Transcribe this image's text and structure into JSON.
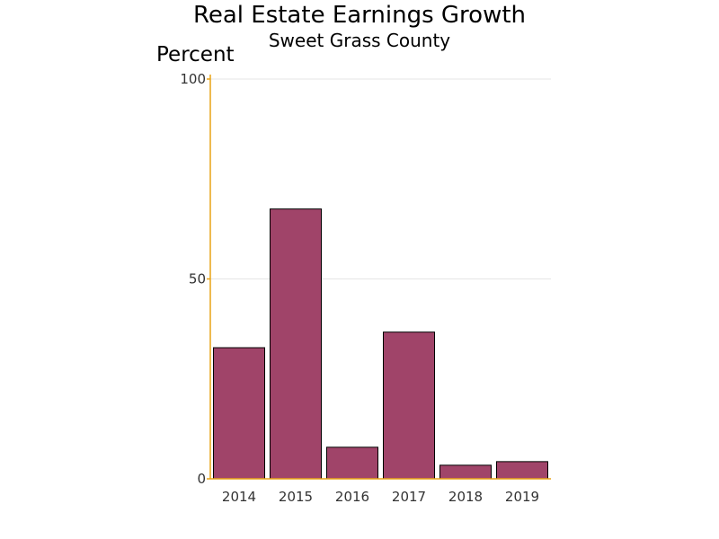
{
  "chart_data": {
    "type": "bar",
    "title": "Real Estate Earnings Growth",
    "subtitle": "Sweet Grass County",
    "ylabel": "Percent",
    "xlabel": "",
    "categories": [
      "2014",
      "2015",
      "2016",
      "2017",
      "2018",
      "2019"
    ],
    "values": [
      32.8,
      67.5,
      7.9,
      36.7,
      3.4,
      4.3
    ],
    "ylim": [
      0,
      100
    ],
    "yticks": [
      0,
      50,
      100
    ],
    "ytick_labels": [
      "0",
      "50",
      "100"
    ],
    "grid": true,
    "legend": "none",
    "colors": {
      "bar_fill": "#a04469",
      "bar_stroke": "#000000",
      "axis": "#e8a317",
      "grid": "#e6e6e6"
    }
  }
}
